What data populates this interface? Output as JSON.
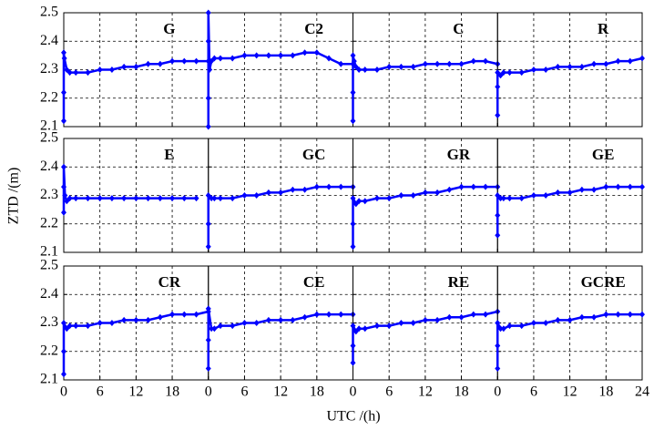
{
  "xlabel": "UTC /(h)",
  "ylabel": "ZTD /(m)",
  "chart_data": [
    {
      "type": "line",
      "title": "G",
      "color": "#0000ff",
      "x": [
        0,
        0,
        0,
        0.1,
        0.5,
        1,
        2,
        4,
        6,
        8,
        10,
        12,
        14,
        16,
        18,
        20,
        22,
        24
      ],
      "values": [
        2.12,
        2.22,
        2.36,
        2.34,
        2.3,
        2.29,
        2.29,
        2.29,
        2.3,
        2.3,
        2.31,
        2.31,
        2.32,
        2.32,
        2.33,
        2.33,
        2.33,
        2.33
      ],
      "xlim": [
        0,
        24
      ],
      "xticks": [
        0,
        6,
        12,
        18,
        24
      ],
      "ylim": [
        2.1,
        2.5
      ],
      "yticks": [
        2.1,
        2.2,
        2.3,
        2.4,
        2.5
      ],
      "grid": true
    },
    {
      "type": "line",
      "title": "C2",
      "color": "#0000ff",
      "x": [
        0,
        0,
        0,
        0,
        0.2,
        0.5,
        1,
        2,
        4,
        6,
        8,
        10,
        12,
        14,
        16,
        18,
        20,
        22,
        24
      ],
      "values": [
        2.1,
        2.2,
        2.4,
        2.5,
        2.3,
        2.33,
        2.34,
        2.34,
        2.34,
        2.35,
        2.35,
        2.35,
        2.35,
        2.35,
        2.36,
        2.36,
        2.34,
        2.32,
        2.32
      ],
      "xlim": [
        0,
        24
      ],
      "xticks": [
        0,
        6,
        12,
        18,
        24
      ],
      "ylim": [
        2.1,
        2.5
      ],
      "yticks": [
        2.1,
        2.2,
        2.3,
        2.4,
        2.5
      ],
      "grid": true
    },
    {
      "type": "line",
      "title": "C",
      "color": "#0000ff",
      "x": [
        0,
        0,
        0,
        0.2,
        0.5,
        1,
        2,
        4,
        6,
        8,
        10,
        12,
        14,
        16,
        18,
        20,
        22,
        24
      ],
      "values": [
        2.12,
        2.22,
        2.35,
        2.33,
        2.31,
        2.3,
        2.3,
        2.3,
        2.31,
        2.31,
        2.31,
        2.32,
        2.32,
        2.32,
        2.32,
        2.33,
        2.33,
        2.32
      ],
      "xlim": [
        0,
        24
      ],
      "xticks": [
        0,
        6,
        12,
        18,
        24
      ],
      "ylim": [
        2.1,
        2.5
      ],
      "yticks": [
        2.1,
        2.2,
        2.3,
        2.4,
        2.5
      ],
      "grid": true
    },
    {
      "type": "line",
      "title": "R",
      "color": "#0000ff",
      "x": [
        0,
        0,
        0,
        0.5,
        1,
        2,
        4,
        6,
        8,
        10,
        12,
        14,
        16,
        18,
        20,
        22,
        24
      ],
      "values": [
        2.14,
        2.24,
        2.29,
        2.28,
        2.29,
        2.29,
        2.29,
        2.3,
        2.3,
        2.31,
        2.31,
        2.31,
        2.32,
        2.32,
        2.33,
        2.33,
        2.34
      ],
      "xlim": [
        0,
        24
      ],
      "xticks": [
        0,
        6,
        12,
        18,
        24
      ],
      "ylim": [
        2.1,
        2.5
      ],
      "yticks": [
        2.1,
        2.2,
        2.3,
        2.4,
        2.5
      ],
      "grid": true
    },
    {
      "type": "line",
      "title": "E",
      "color": "#0000ff",
      "x": [
        0,
        0,
        0,
        0.2,
        0.5,
        1,
        2,
        4,
        6,
        8,
        10,
        12,
        14,
        16,
        18,
        20,
        22
      ],
      "values": [
        2.24,
        2.33,
        2.4,
        2.3,
        2.28,
        2.29,
        2.29,
        2.29,
        2.29,
        2.29,
        2.29,
        2.29,
        2.29,
        2.29,
        2.29,
        2.29,
        2.29
      ],
      "xlim": [
        0,
        24
      ],
      "xticks": [
        0,
        6,
        12,
        18,
        24
      ],
      "ylim": [
        2.1,
        2.5
      ],
      "yticks": [
        2.1,
        2.2,
        2.3,
        2.4,
        2.5
      ],
      "grid": true
    },
    {
      "type": "line",
      "title": "GC",
      "color": "#0000ff",
      "x": [
        0,
        0,
        0,
        0.5,
        1,
        2,
        4,
        6,
        8,
        10,
        12,
        14,
        16,
        18,
        20,
        22,
        24
      ],
      "values": [
        2.12,
        2.2,
        2.3,
        2.29,
        2.29,
        2.29,
        2.29,
        2.3,
        2.3,
        2.31,
        2.31,
        2.32,
        2.32,
        2.33,
        2.33,
        2.33,
        2.33
      ],
      "xlim": [
        0,
        24
      ],
      "xticks": [
        0,
        6,
        12,
        18,
        24
      ],
      "ylim": [
        2.1,
        2.5
      ],
      "yticks": [
        2.1,
        2.2,
        2.3,
        2.4,
        2.5
      ],
      "grid": true
    },
    {
      "type": "line",
      "title": "GR",
      "color": "#0000ff",
      "x": [
        0,
        0,
        0,
        0.5,
        1,
        2,
        4,
        6,
        8,
        10,
        12,
        14,
        16,
        18,
        20,
        22,
        24
      ],
      "values": [
        2.12,
        2.2,
        2.29,
        2.27,
        2.28,
        2.28,
        2.29,
        2.29,
        2.3,
        2.3,
        2.31,
        2.31,
        2.32,
        2.33,
        2.33,
        2.33,
        2.33
      ],
      "xlim": [
        0,
        24
      ],
      "xticks": [
        0,
        6,
        12,
        18,
        24
      ],
      "ylim": [
        2.1,
        2.5
      ],
      "yticks": [
        2.1,
        2.2,
        2.3,
        2.4,
        2.5
      ],
      "grid": true
    },
    {
      "type": "line",
      "title": "GE",
      "color": "#0000ff",
      "x": [
        0,
        0,
        0,
        0.5,
        1,
        2,
        4,
        6,
        8,
        10,
        12,
        14,
        16,
        18,
        20,
        22,
        24
      ],
      "values": [
        2.16,
        2.23,
        2.3,
        2.29,
        2.29,
        2.29,
        2.29,
        2.3,
        2.3,
        2.31,
        2.31,
        2.32,
        2.32,
        2.33,
        2.33,
        2.33,
        2.33
      ],
      "xlim": [
        0,
        24
      ],
      "xticks": [
        0,
        6,
        12,
        18,
        24
      ],
      "ylim": [
        2.1,
        2.5
      ],
      "yticks": [
        2.1,
        2.2,
        2.3,
        2.4,
        2.5
      ],
      "grid": true
    },
    {
      "type": "line",
      "title": "CR",
      "color": "#0000ff",
      "x": [
        0,
        0,
        0,
        0.5,
        1,
        2,
        4,
        6,
        8,
        10,
        12,
        14,
        16,
        18,
        20,
        22,
        24
      ],
      "values": [
        2.12,
        2.2,
        2.3,
        2.28,
        2.29,
        2.29,
        2.29,
        2.3,
        2.3,
        2.31,
        2.31,
        2.31,
        2.32,
        2.33,
        2.33,
        2.33,
        2.34
      ],
      "xlim": [
        0,
        24
      ],
      "xticks": [
        0,
        6,
        12,
        18,
        24
      ],
      "ylim": [
        2.1,
        2.5
      ],
      "yticks": [
        2.1,
        2.2,
        2.3,
        2.4,
        2.5
      ],
      "grid": true
    },
    {
      "type": "line",
      "title": "CE",
      "color": "#0000ff",
      "x": [
        0,
        0,
        0,
        0.5,
        1,
        2,
        4,
        6,
        8,
        10,
        12,
        14,
        16,
        18,
        20,
        22,
        24
      ],
      "values": [
        2.14,
        2.24,
        2.35,
        2.28,
        2.28,
        2.29,
        2.29,
        2.3,
        2.3,
        2.31,
        2.31,
        2.31,
        2.32,
        2.33,
        2.33,
        2.33,
        2.33
      ],
      "xlim": [
        0,
        24
      ],
      "xticks": [
        0,
        6,
        12,
        18,
        24
      ],
      "ylim": [
        2.1,
        2.5
      ],
      "yticks": [
        2.1,
        2.2,
        2.3,
        2.4,
        2.5
      ],
      "grid": true
    },
    {
      "type": "line",
      "title": "RE",
      "color": "#0000ff",
      "x": [
        0,
        0,
        0,
        0.5,
        1,
        2,
        4,
        6,
        8,
        10,
        12,
        14,
        16,
        18,
        20,
        22,
        24
      ],
      "values": [
        2.16,
        2.22,
        2.29,
        2.27,
        2.28,
        2.28,
        2.29,
        2.29,
        2.3,
        2.3,
        2.31,
        2.31,
        2.32,
        2.32,
        2.33,
        2.33,
        2.34
      ],
      "xlim": [
        0,
        24
      ],
      "xticks": [
        0,
        6,
        12,
        18,
        24
      ],
      "ylim": [
        2.1,
        2.5
      ],
      "yticks": [
        2.1,
        2.2,
        2.3,
        2.4,
        2.5
      ],
      "grid": true
    },
    {
      "type": "line",
      "title": "GCRE",
      "color": "#0000ff",
      "x": [
        0,
        0,
        0,
        0.5,
        1,
        2,
        4,
        6,
        8,
        10,
        12,
        14,
        16,
        18,
        20,
        22,
        24
      ],
      "values": [
        2.14,
        2.22,
        2.3,
        2.28,
        2.28,
        2.29,
        2.29,
        2.3,
        2.3,
        2.31,
        2.31,
        2.32,
        2.32,
        2.33,
        2.33,
        2.33,
        2.33
      ],
      "xlim": [
        0,
        24
      ],
      "xticks": [
        0,
        6,
        12,
        18,
        24
      ],
      "ylim": [
        2.1,
        2.5
      ],
      "yticks": [
        2.1,
        2.2,
        2.3,
        2.4,
        2.5
      ],
      "grid": true
    }
  ]
}
